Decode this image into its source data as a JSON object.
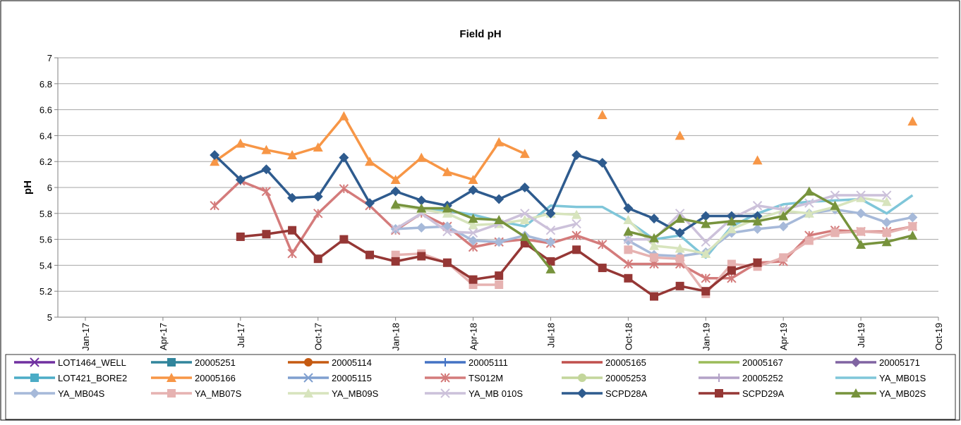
{
  "chart_data": {
    "type": "line",
    "title": "Field pH",
    "y_label": "pH",
    "x": [
      "Jun-17",
      "Jul-17",
      "Aug-17",
      "Sep-17",
      "Oct-17",
      "Nov-17",
      "Dec-17",
      "Jan-18",
      "Feb-18",
      "Mar-18",
      "Apr-18",
      "May-18",
      "Jun-18",
      "Jul-18",
      "Aug-18",
      "Sep-18",
      "Oct-18",
      "Nov-18",
      "Dec-18",
      "Jan-19",
      "Feb-19",
      "Mar-19",
      "Apr-19",
      "May-19",
      "Jun-19",
      "Jul-19",
      "Aug-19",
      "Sep-19"
    ],
    "xlim": [
      "Jan-17",
      "Oct-19"
    ],
    "xticks": [
      "Jan-17",
      "Apr-17",
      "Jul-17",
      "Oct-17",
      "Jan-18",
      "Apr-18",
      "Jul-18",
      "Oct-18",
      "Jan-19",
      "Apr-19",
      "Jul-19",
      "Oct-19"
    ],
    "ylim": [
      5,
      7
    ],
    "yticks": [
      5,
      5.2,
      5.4,
      5.6,
      5.8,
      6,
      6.2,
      6.4,
      6.6,
      6.8,
      7
    ],
    "grid": true,
    "legend": "bottom",
    "series": [
      {
        "name": "LOT1464_WELL",
        "color": "#7030a0",
        "marker": "x",
        "values": [
          null,
          null,
          null,
          null,
          null,
          null,
          null,
          null,
          null,
          null,
          null,
          null,
          null,
          null,
          null,
          null,
          null,
          null,
          null,
          null,
          null,
          null,
          null,
          null,
          null,
          null,
          null,
          null
        ]
      },
      {
        "name": "20005251",
        "color": "#31859c",
        "marker": "square",
        "values": [
          null,
          null,
          null,
          null,
          null,
          null,
          null,
          null,
          null,
          null,
          null,
          null,
          null,
          null,
          null,
          null,
          null,
          null,
          null,
          null,
          null,
          null,
          null,
          null,
          null,
          null,
          null,
          null
        ]
      },
      {
        "name": "20005114",
        "color": "#c55a11",
        "marker": "circle",
        "values": [
          null,
          null,
          null,
          null,
          null,
          null,
          null,
          null,
          null,
          null,
          null,
          null,
          null,
          null,
          null,
          null,
          null,
          null,
          null,
          null,
          null,
          null,
          null,
          null,
          null,
          null,
          null,
          null
        ]
      },
      {
        "name": "20005111",
        "color": "#4472c4",
        "marker": "plus",
        "values": [
          null,
          null,
          null,
          null,
          null,
          null,
          null,
          null,
          null,
          null,
          null,
          null,
          null,
          null,
          null,
          null,
          null,
          null,
          null,
          null,
          null,
          null,
          null,
          null,
          null,
          null,
          null,
          null
        ]
      },
      {
        "name": "20005165",
        "color": "#c0504d",
        "marker": "none",
        "values": [
          null,
          null,
          null,
          null,
          null,
          null,
          null,
          null,
          null,
          null,
          null,
          null,
          null,
          null,
          null,
          null,
          null,
          null,
          null,
          null,
          null,
          null,
          null,
          null,
          null,
          null,
          null,
          null
        ]
      },
      {
        "name": "20005167",
        "color": "#9bbb59",
        "marker": "none",
        "values": [
          null,
          null,
          null,
          null,
          null,
          null,
          null,
          null,
          null,
          null,
          null,
          null,
          null,
          null,
          null,
          null,
          null,
          null,
          null,
          null,
          null,
          null,
          null,
          null,
          null,
          null,
          null,
          null
        ]
      },
      {
        "name": "20005171",
        "color": "#8064a2",
        "marker": "diamond",
        "values": [
          null,
          null,
          null,
          null,
          null,
          null,
          null,
          null,
          null,
          null,
          null,
          null,
          null,
          null,
          null,
          null,
          null,
          null,
          null,
          null,
          null,
          null,
          null,
          null,
          null,
          null,
          null,
          null
        ]
      },
      {
        "name": "LOT421_BORE2",
        "color": "#4bacc6",
        "marker": "square",
        "values": [
          null,
          null,
          null,
          null,
          null,
          null,
          null,
          null,
          null,
          null,
          null,
          null,
          null,
          null,
          null,
          null,
          null,
          null,
          null,
          null,
          null,
          null,
          null,
          null,
          null,
          null,
          null,
          null
        ]
      },
      {
        "name": "20005166",
        "color": "#f79646",
        "marker": "triangle",
        "values": [
          6.2,
          6.34,
          6.29,
          6.25,
          6.31,
          6.55,
          6.2,
          6.06,
          6.23,
          6.12,
          6.06,
          6.35,
          6.26,
          null,
          null,
          6.56,
          null,
          null,
          6.4,
          null,
          null,
          6.21,
          null,
          null,
          null,
          null,
          null,
          6.51
        ]
      },
      {
        "name": "20005115",
        "color": "#7f9fcf",
        "marker": "x",
        "values": [
          null,
          null,
          null,
          null,
          null,
          null,
          null,
          null,
          null,
          null,
          null,
          null,
          null,
          null,
          null,
          null,
          null,
          null,
          null,
          null,
          null,
          null,
          null,
          null,
          null,
          null,
          null,
          null
        ]
      },
      {
        "name": "TS012M",
        "color": "#d47b7b",
        "marker": "star",
        "values": [
          5.86,
          6.05,
          5.97,
          5.49,
          5.8,
          5.99,
          5.86,
          5.67,
          5.8,
          5.7,
          5.54,
          5.58,
          5.6,
          5.57,
          5.63,
          5.56,
          5.41,
          5.41,
          5.41,
          5.3,
          5.3,
          5.42,
          5.43,
          5.63,
          5.67,
          5.66,
          5.66,
          5.7
        ]
      },
      {
        "name": "20005253",
        "color": "#c3d69b",
        "marker": "circle",
        "values": [
          null,
          null,
          null,
          null,
          null,
          null,
          null,
          null,
          null,
          null,
          null,
          null,
          null,
          null,
          null,
          null,
          null,
          null,
          null,
          null,
          null,
          null,
          null,
          null,
          null,
          null,
          null,
          null
        ]
      },
      {
        "name": "20005252",
        "color": "#b3a2c7",
        "marker": "plus",
        "values": [
          null,
          null,
          null,
          null,
          null,
          null,
          null,
          null,
          null,
          null,
          null,
          null,
          null,
          null,
          null,
          null,
          null,
          null,
          null,
          null,
          null,
          null,
          null,
          null,
          null,
          null,
          null,
          null
        ]
      },
      {
        "name": "YA_MB01S",
        "color": "#7fc6d9",
        "marker": "none",
        "values": [
          null,
          null,
          null,
          null,
          null,
          null,
          null,
          5.87,
          5.84,
          5.82,
          5.79,
          5.74,
          5.7,
          5.86,
          5.85,
          5.85,
          5.74,
          5.6,
          5.63,
          5.46,
          5.7,
          5.8,
          5.87,
          5.89,
          5.9,
          5.91,
          5.8,
          5.94
        ]
      },
      {
        "name": "YA_MB04S",
        "color": "#a6b9d9",
        "marker": "diamond",
        "values": [
          null,
          null,
          null,
          null,
          null,
          null,
          null,
          5.68,
          5.69,
          5.7,
          5.59,
          5.58,
          5.63,
          5.58,
          null,
          null,
          5.59,
          5.48,
          5.47,
          5.5,
          5.65,
          5.68,
          5.7,
          5.8,
          5.83,
          5.8,
          5.73,
          5.77
        ]
      },
      {
        "name": "YA_MB07S",
        "color": "#e6b2b1",
        "marker": "square",
        "values": [
          null,
          null,
          null,
          null,
          null,
          null,
          null,
          5.48,
          5.49,
          5.42,
          5.25,
          5.25,
          null,
          null,
          null,
          null,
          5.52,
          5.46,
          5.45,
          5.18,
          5.41,
          5.39,
          5.46,
          5.59,
          5.65,
          5.66,
          5.65,
          5.7
        ]
      },
      {
        "name": "YA_MB09S",
        "color": "#d7e4bd",
        "marker": "triangle",
        "values": [
          null,
          null,
          null,
          null,
          null,
          null,
          null,
          5.86,
          5.83,
          5.8,
          5.71,
          5.72,
          5.75,
          5.8,
          5.79,
          null,
          5.75,
          5.55,
          5.53,
          5.49,
          5.68,
          5.76,
          5.82,
          5.8,
          5.85,
          5.92,
          5.89,
          null
        ]
      },
      {
        "name": "YA_MB 010S",
        "color": "#ccc1da",
        "marker": "x",
        "values": [
          null,
          null,
          null,
          null,
          null,
          null,
          null,
          5.68,
          5.8,
          5.66,
          5.65,
          5.72,
          5.8,
          5.67,
          5.72,
          null,
          5.6,
          5.6,
          5.8,
          5.58,
          5.76,
          5.86,
          5.83,
          5.88,
          5.94,
          5.94,
          5.94,
          null
        ]
      },
      {
        "name": "SCPD28A",
        "color": "#2e5b8e",
        "marker": "diamond",
        "values": [
          6.25,
          6.06,
          6.14,
          5.92,
          5.93,
          6.23,
          5.88,
          5.97,
          5.9,
          5.86,
          5.98,
          5.91,
          6.0,
          5.8,
          6.25,
          6.19,
          5.84,
          5.76,
          5.65,
          5.78,
          5.78,
          5.78,
          null,
          null,
          null,
          null,
          null,
          null
        ]
      },
      {
        "name": "SCPD29A",
        "color": "#953735",
        "marker": "square",
        "values": [
          null,
          5.62,
          5.64,
          5.67,
          5.45,
          5.6,
          5.48,
          5.43,
          5.47,
          5.42,
          5.29,
          5.32,
          5.57,
          5.43,
          5.52,
          5.38,
          5.3,
          5.16,
          5.24,
          5.2,
          5.36,
          5.42,
          null,
          null,
          null,
          null,
          null,
          null
        ]
      },
      {
        "name": "YA_MB02S",
        "color": "#77933c",
        "marker": "triangle",
        "values": [
          null,
          null,
          null,
          null,
          null,
          null,
          null,
          5.87,
          5.84,
          5.84,
          5.76,
          5.75,
          5.62,
          5.37,
          null,
          null,
          5.66,
          5.61,
          5.76,
          5.72,
          5.74,
          5.74,
          5.78,
          5.97,
          5.86,
          5.56,
          5.58,
          5.63
        ]
      }
    ]
  }
}
